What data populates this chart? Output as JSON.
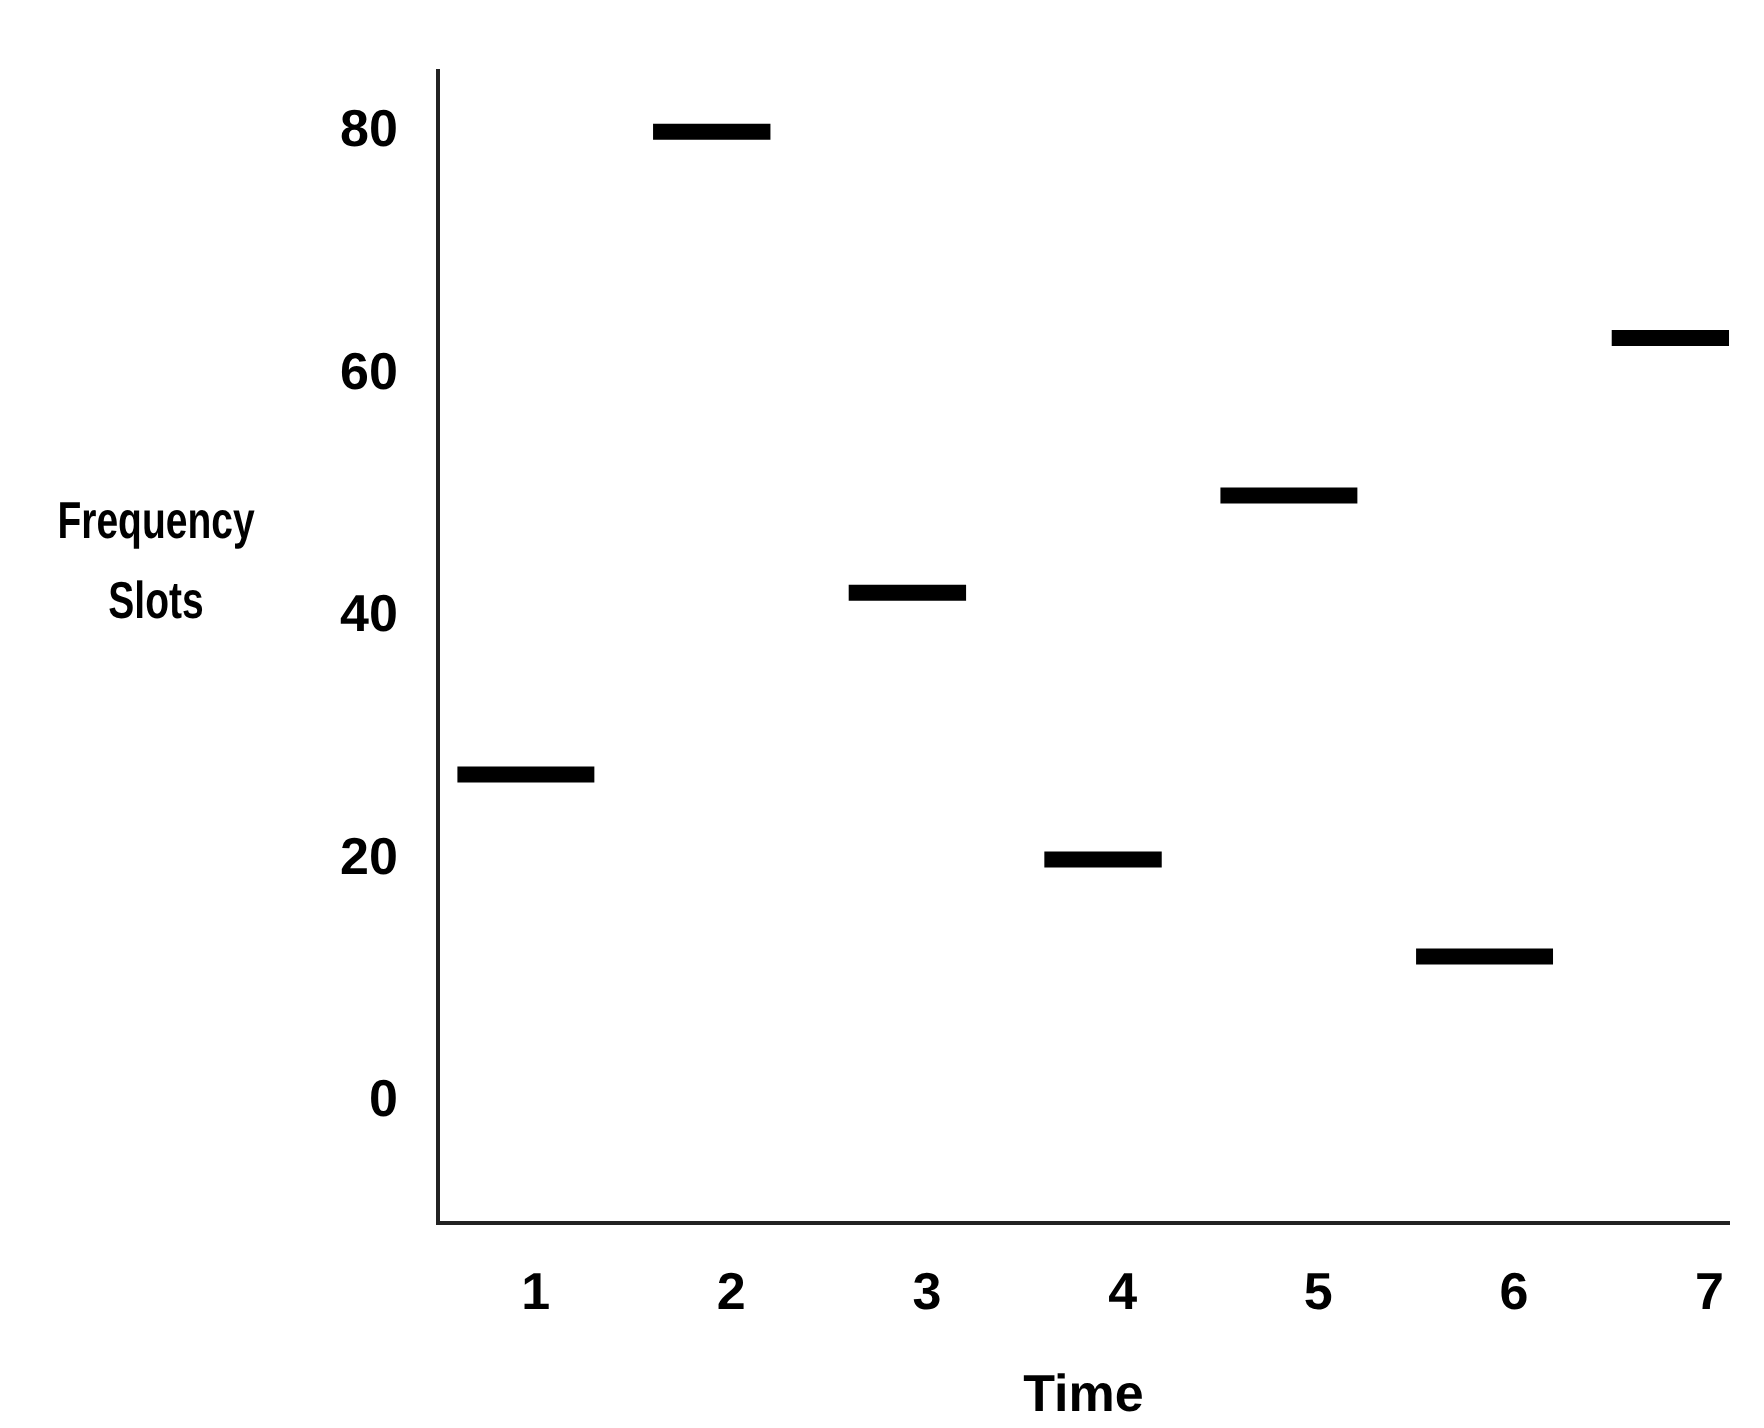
{
  "chart_data": {
    "type": "line",
    "xlabel": "Time",
    "ylabel": "Frequency Slots",
    "xlim": [
      0.5,
      7.1
    ],
    "xticks": [
      1,
      2,
      3,
      4,
      5,
      6,
      7
    ],
    "ylim": [
      -10,
      85
    ],
    "yticks": [
      0,
      20,
      40,
      60,
      80
    ],
    "series": [
      {
        "color": "#000000",
        "x": [
          0.6,
          1.3
        ],
        "values": [
          27,
          27
        ]
      },
      {
        "color": "#000000",
        "x": [
          1.6,
          2.2
        ],
        "values": [
          80,
          80
        ]
      },
      {
        "color": "#000000",
        "x": [
          2.6,
          3.2
        ],
        "values": [
          42,
          42
        ]
      },
      {
        "color": "#000000",
        "x": [
          3.6,
          4.2
        ],
        "values": [
          20,
          20
        ]
      },
      {
        "color": "#000000",
        "x": [
          4.5,
          5.2
        ],
        "values": [
          50,
          50
        ]
      },
      {
        "color": "#000000",
        "x": [
          5.5,
          6.2
        ],
        "values": [
          12,
          12
        ]
      },
      {
        "color": "#000000",
        "x": [
          6.5,
          7.1
        ],
        "values": [
          63,
          63
        ]
      }
    ],
    "grid": false,
    "legend": false,
    "marker": "none"
  }
}
